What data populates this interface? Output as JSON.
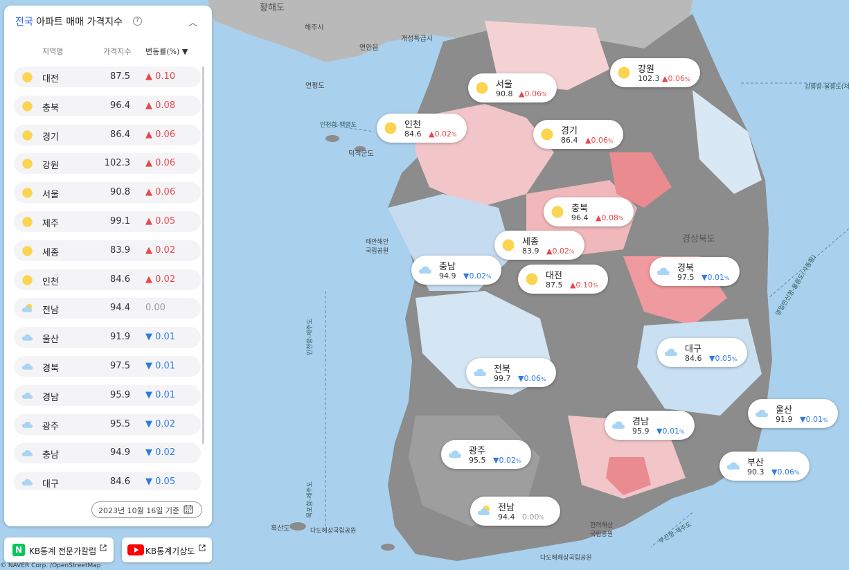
{
  "panel": {
    "title_accent": "전국",
    "title_rest": " 아파트 매매 가격지수",
    "help_glyph": "?",
    "collapse_glyph": "︿",
    "headers": {
      "region": "지역명",
      "index": "가격지수",
      "change": "변동률(%) ▼"
    },
    "rows": [
      {
        "icon": "sun-icon",
        "region": "대전",
        "index": "87.5",
        "dir": "up",
        "change": "0.10"
      },
      {
        "icon": "sun-icon",
        "region": "충북",
        "index": "96.4",
        "dir": "up",
        "change": "0.08"
      },
      {
        "icon": "sun-icon",
        "region": "경기",
        "index": "86.4",
        "dir": "up",
        "change": "0.06"
      },
      {
        "icon": "sun-icon",
        "region": "강원",
        "index": "102.3",
        "dir": "up",
        "change": "0.06"
      },
      {
        "icon": "sun-icon",
        "region": "서울",
        "index": "90.8",
        "dir": "up",
        "change": "0.06"
      },
      {
        "icon": "sun-icon",
        "region": "제주",
        "index": "99.1",
        "dir": "up",
        "change": "0.05"
      },
      {
        "icon": "sun-icon",
        "region": "세종",
        "index": "83.9",
        "dir": "up",
        "change": "0.02"
      },
      {
        "icon": "sun-icon",
        "region": "인천",
        "index": "84.6",
        "dir": "up",
        "change": "0.02"
      },
      {
        "icon": "partly-cloudy-icon",
        "region": "전남",
        "index": "94.4",
        "dir": "flat",
        "change": "0.00"
      },
      {
        "icon": "cloud-icon",
        "region": "울산",
        "index": "91.9",
        "dir": "down",
        "change": "0.01"
      },
      {
        "icon": "cloud-icon",
        "region": "경북",
        "index": "97.5",
        "dir": "down",
        "change": "0.01"
      },
      {
        "icon": "cloud-icon",
        "region": "경남",
        "index": "95.9",
        "dir": "down",
        "change": "0.01"
      },
      {
        "icon": "cloud-icon",
        "region": "광주",
        "index": "95.5",
        "dir": "down",
        "change": "0.02"
      },
      {
        "icon": "cloud-icon",
        "region": "충남",
        "index": "94.9",
        "dir": "down",
        "change": "0.02"
      },
      {
        "icon": "cloud-icon",
        "region": "대구",
        "index": "84.6",
        "dir": "down",
        "change": "0.05"
      }
    ],
    "date_label": "2023년 10월 16일 기준"
  },
  "links": {
    "column": {
      "label": "KB통계 전문가칼럼",
      "logo": "N"
    },
    "youtube": {
      "label": "KB통계기상도"
    }
  },
  "markers": [
    {
      "icon": "sun-icon",
      "region": "강원",
      "index": "102.3",
      "dir": "up",
      "change": "0.06"
    },
    {
      "icon": "sun-icon",
      "region": "서울",
      "index": "90.8",
      "dir": "up",
      "change": "0.06"
    },
    {
      "icon": "sun-icon",
      "region": "인천",
      "index": "84.6",
      "dir": "up",
      "change": "0.02"
    },
    {
      "icon": "sun-icon",
      "region": "경기",
      "index": "86.4",
      "dir": "up",
      "change": "0.06"
    },
    {
      "icon": "sun-icon",
      "region": "충북",
      "index": "96.4",
      "dir": "up",
      "change": "0.08"
    },
    {
      "icon": "sun-icon",
      "region": "세종",
      "index": "83.9",
      "dir": "up",
      "change": "0.02"
    },
    {
      "icon": "cloud-icon",
      "region": "충남",
      "index": "94.9",
      "dir": "down",
      "change": "0.02"
    },
    {
      "icon": "sun-icon",
      "region": "대전",
      "index": "87.5",
      "dir": "up",
      "change": "0.10"
    },
    {
      "icon": "cloud-icon",
      "region": "경북",
      "index": "97.5",
      "dir": "down",
      "change": "0.01"
    },
    {
      "icon": "cloud-icon",
      "region": "대구",
      "index": "84.6",
      "dir": "down",
      "change": "0.05"
    },
    {
      "icon": "cloud-icon",
      "region": "전북",
      "index": "99.7",
      "dir": "down",
      "change": "0.06"
    },
    {
      "icon": "cloud-icon",
      "region": "울산",
      "index": "91.9",
      "dir": "down",
      "change": "0.01"
    },
    {
      "icon": "cloud-icon",
      "region": "경남",
      "index": "95.9",
      "dir": "down",
      "change": "0.01"
    },
    {
      "icon": "cloud-icon",
      "region": "광주",
      "index": "95.5",
      "dir": "down",
      "change": "0.02"
    },
    {
      "icon": "cloud-icon",
      "region": "부산",
      "index": "90.3",
      "dir": "down",
      "change": "0.06"
    },
    {
      "icon": "partly-cloudy-icon",
      "region": "전남",
      "index": "94.4",
      "dir": "flat",
      "change": "0.00"
    }
  ],
  "map_labels": {
    "hwanghae": "황해도",
    "haeju": "해주시",
    "yonan": "연안읍",
    "kaesong": "개성특급시",
    "yeonpyeong": "연평도",
    "deokjeok": "덕적군도",
    "taean_park": "태안해안 국립공원",
    "gyeongsang": "경상북도",
    "heuksan": "흑산도",
    "dadohae": "다도해상국립공원",
    "dadohae2": "다도해해상국립공원",
    "hallyeo": "한려해상 국립공원",
    "route1": "인천항-백령도",
    "route2": "인천항-제주도",
    "route3": "목포항-제주도",
    "route4": "부산항-제주도",
    "route5": "강릉항-울릉도(저",
    "route6": "영일만신항-울릉도(사동항)",
    "attribution": "© NAVER Corp. /OpenStreetMap"
  },
  "colors": {
    "accent": "#2f6fe3",
    "up": "#e8484c",
    "down": "#2c7be5",
    "sea": "#a9d1ee",
    "sun": "#fbd451",
    "cloud": "#a8d4f5"
  }
}
